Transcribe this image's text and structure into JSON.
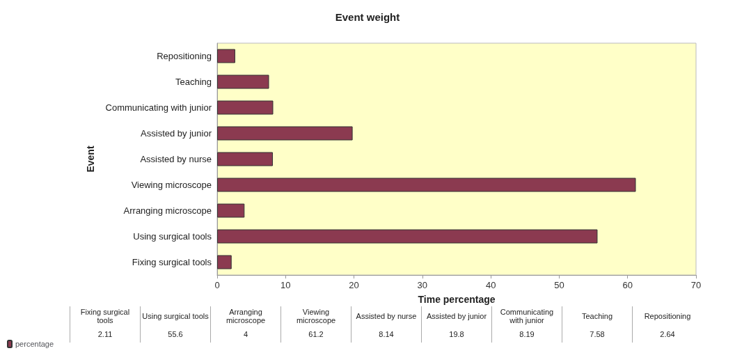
{
  "chart_data": {
    "type": "bar",
    "orientation": "horizontal",
    "title": "Event weight",
    "xlabel": "Time percentage",
    "ylabel": "Event",
    "categories": [
      "Repositioning",
      "Teaching",
      "Communicating with junior",
      "Assisted by junior",
      "Assisted by nurse",
      "Viewing microscope",
      "Arranging microscope",
      "Using surgical tools",
      "Fixing surgical tools"
    ],
    "series": [
      {
        "name": "percentage",
        "color": "#8b3a50",
        "values": [
          2.64,
          7.58,
          8.19,
          19.8,
          8.14,
          61.2,
          4,
          55.6,
          2.11
        ]
      }
    ],
    "xlim": [
      0,
      70
    ],
    "xticks": [
      0,
      10,
      20,
      30,
      40,
      50,
      60,
      70
    ],
    "grid": false,
    "legend": "bottom left",
    "annotations": [
      "2.11",
      "55.6",
      "4",
      "61.2",
      "8.14",
      "19.8",
      "8.19",
      "7.58",
      "2.64"
    ]
  }
}
